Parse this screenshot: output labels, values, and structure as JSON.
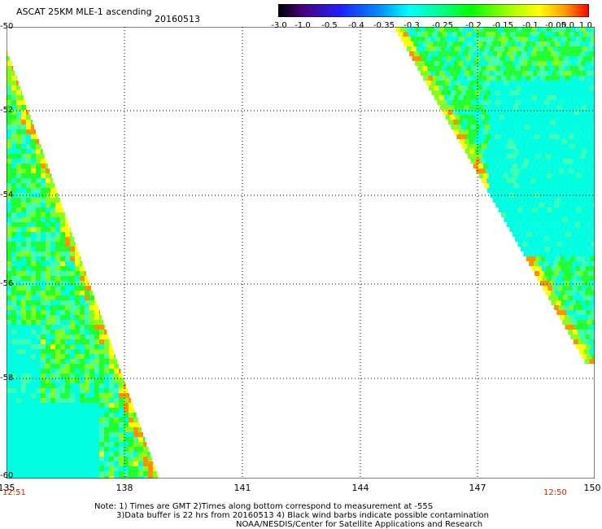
{
  "header": {
    "title": "ASCAT 25KM MLE-1 ascending",
    "date": "20160513"
  },
  "colorbar": {
    "labels": [
      "-3.0",
      "-1.0",
      "-0.5",
      "-0.4",
      "-0.35",
      "-0.3",
      "-0.25",
      "-0.2",
      "-0.15",
      "-0.1",
      "-0.05",
      "0.0",
      "1.0"
    ],
    "colors": [
      "#000000",
      "#4a0080",
      "#2020ff",
      "#0090ff",
      "#00ffff",
      "#00ff90",
      "#00ff00",
      "#a0ff00",
      "#ffff00",
      "#ffa000",
      "#ff4000",
      "#ff0000"
    ]
  },
  "map": {
    "lon_range": [
      135,
      150
    ],
    "lat_range": [
      -60,
      -50
    ],
    "lon_ticks": [
      "135",
      "138",
      "141",
      "144",
      "147",
      "150"
    ],
    "lat_ticks": [
      "-50",
      "-52",
      "-54",
      "-56",
      "-58",
      "-60"
    ],
    "time_left": "12:51",
    "time_right": "12:50"
  },
  "notes": {
    "line1": "Note: 1) Times are GMT 2)Times along bottom correspond to measurement at -55S",
    "line2": "3)Data buffer is 22 hrs from 20160513 4) Black wind barbs indicate possible contamination",
    "line3": "NOAA/NESDIS/Center for Satellite Applications and Research"
  }
}
